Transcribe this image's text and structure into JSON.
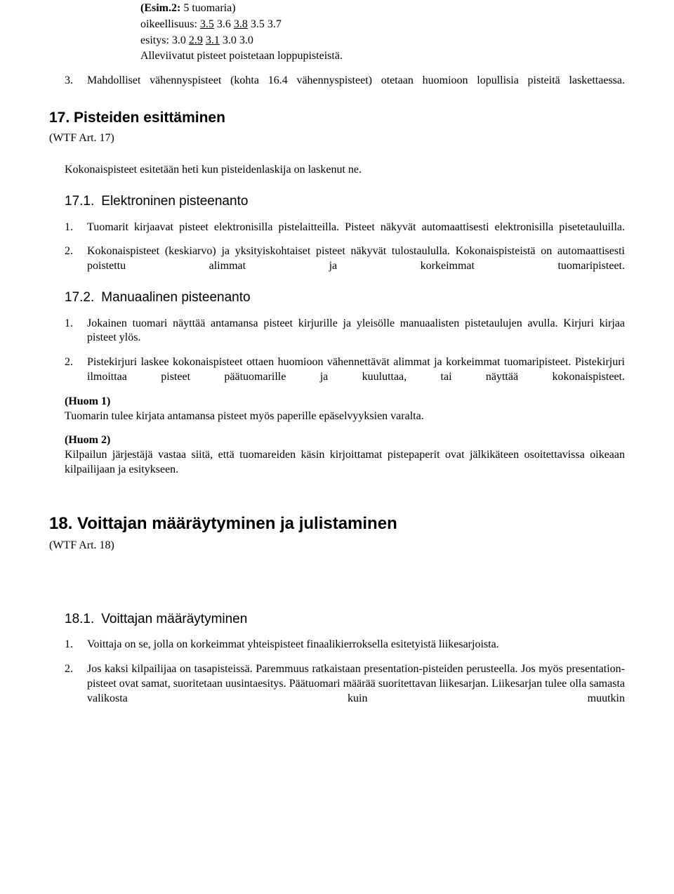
{
  "example": {
    "title_prefix": "(Esim.2:",
    "title_rest": " 5 tuomaria)",
    "row1_label": "oikeellisuus: ",
    "row1_a": "3.5",
    "row1_b": " 3.6 ",
    "row1_c": "3.8",
    "row1_d": " 3.5 3.7",
    "row2_label": "esitys: 3.0 ",
    "row2_a": "2.9",
    "row2_b": " ",
    "row2_c": "3.1",
    "row2_d": " 3.0 3.0",
    "row3": "Alleviivatut pisteet poistetaan loppupisteistä."
  },
  "item3": {
    "num": "3.",
    "text": "Mahdolliset vähennyspisteet (kohta 16.4 vähennyspisteet) otetaan huomioon lopullisia pisteitä laskettaessa."
  },
  "s17": {
    "title": "17.  Pisteiden esittäminen",
    "wtf": "(WTF Art. 17)",
    "intro": "Kokonaispisteet esitetään heti kun pisteidenlaskija on laskenut ne.",
    "s1": {
      "num": "17.1.",
      "title": "Elektroninen pisteenanto",
      "i1": {
        "num": "1.",
        "text": "Tuomarit kirjaavat pisteet elektronisilla pistelaitteilla. Pisteet näkyvät automaattisesti elektronisilla pisetetauluilla."
      },
      "i2": {
        "num": "2.",
        "text": "Kokonaispisteet (keskiarvo) ja yksityiskohtaiset pisteet näkyvät tulostaululla. Kokonaispisteistä on automaattisesti poistettu alimmat ja korkeimmat tuomaripisteet."
      }
    },
    "s2": {
      "num": "17.2.",
      "title": "Manuaalinen pisteenanto",
      "i1": {
        "num": "1.",
        "text": "Jokainen tuomari näyttää antamansa pisteet kirjurille ja yleisölle manuaalisten pistetaulujen avulla. Kirjuri kirjaa pisteet ylös."
      },
      "i2": {
        "num": "2.",
        "text": "Pistekirjuri laskee kokonaispisteet ottaen huomioon vähennettävät alimmat ja korkeimmat tuomaripisteet. Pistekirjuri ilmoittaa pisteet päätuomarille ja kuuluttaa, tai näyttää kokonaispisteet."
      },
      "n1": {
        "title": "(Huom 1)",
        "body": "Tuomarin tulee kirjata antamansa pisteet myös paperille epäselvyyksien varalta."
      },
      "n2": {
        "title": "(Huom 2)",
        "body": "Kilpailun järjestäjä vastaa siitä, että tuomareiden käsin kirjoittamat pistepaperit ovat jälkikäteen osoitettavissa oikeaan kilpailijaan ja esitykseen."
      }
    }
  },
  "s18": {
    "title": "18.  Voittajan määräytyminen ja julistaminen",
    "wtf": "(WTF Art. 18)",
    "s1": {
      "num": "18.1.",
      "title": "Voittajan määräytyminen",
      "i1": {
        "num": "1.",
        "text": "Voittaja on se, jolla on korkeimmat yhteispisteet finaalikierroksella esitetyistä liikesarjoista."
      },
      "i2": {
        "num": "2.",
        "text": "Jos kaksi kilpailijaa on tasapisteissä. Paremmuus ratkaistaan presentation-pisteiden perusteella. Jos myös presentation-pisteet ovat samat, suoritetaan uusintaesitys. Päätuomari määrää suoritettavan liikesarjan. Liikesarjan tulee olla samasta valikosta kuin muutkin"
      }
    }
  }
}
